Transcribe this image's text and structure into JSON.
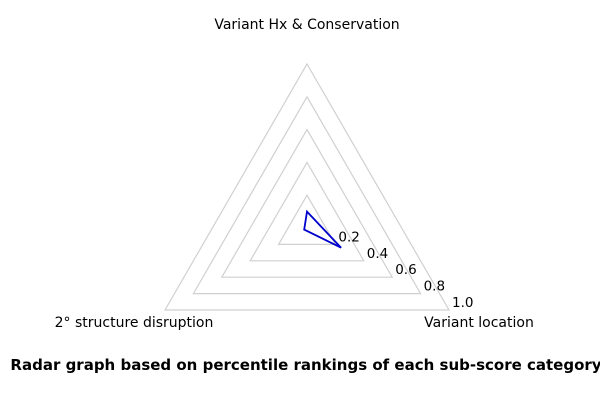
{
  "chart_data": {
    "type": "radar",
    "caption": "Radar graph based on percentile rankings of each sub-score category",
    "axes": [
      {
        "label": "Variant Hx & Conservation",
        "angle_deg": 90,
        "value": 0.1
      },
      {
        "label": "Variant location",
        "angle_deg": -30,
        "value": 0.24
      },
      {
        "label": "2° structure disruption",
        "angle_deg": 210,
        "value": 0.02
      }
    ],
    "radial_ticks": [
      0.2,
      0.4,
      0.6,
      0.8,
      1.0
    ],
    "radial_tick_labels": [
      "0.2",
      "0.4",
      "0.6",
      "0.8",
      "1.0"
    ],
    "range": [
      0,
      1.0
    ],
    "grid": true,
    "legend": "none",
    "colors": {
      "series": "#0000cd",
      "grid": "#d0d0d0",
      "text": "#000000",
      "background": "#ffffff"
    }
  }
}
